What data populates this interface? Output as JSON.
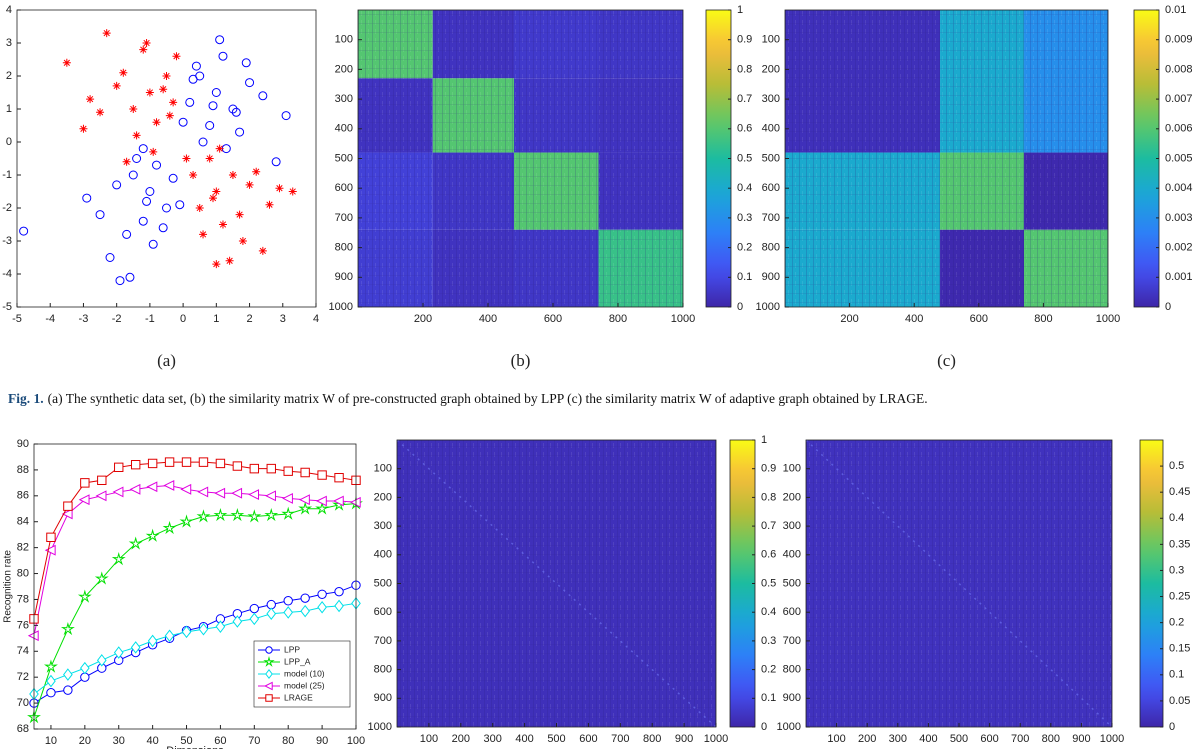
{
  "caption": {
    "label": "Fig. 1.",
    "text": "(a) The synthetic data set, (b) the similarity matrix W of pre-constructed graph obtained by LPP (c) the similarity matrix W of adaptive graph obtained by LRAGE."
  },
  "chart_data": [
    {
      "type": "scatter",
      "label": "(a)",
      "xlim": [
        -5,
        4
      ],
      "xticks": [
        -5,
        -4,
        -3,
        -2,
        -1,
        0,
        1,
        2,
        3,
        4
      ],
      "ylim": [
        -5,
        4
      ],
      "yticks": [
        -5,
        -4,
        -3,
        -2,
        -1,
        0,
        1,
        2,
        3,
        4
      ],
      "series": [
        {
          "color": "#0000ff",
          "marker": "circle",
          "x": [
            1.0,
            0.5,
            1.5,
            0.8,
            1.2,
            0.2,
            2.0,
            1.7,
            0.9,
            0.4,
            1.3,
            2.4,
            0.6,
            1.1,
            3.1,
            0.0,
            1.9,
            2.8,
            0.3,
            1.6,
            -1.0,
            -1.5,
            -0.5,
            -1.2,
            -0.8,
            -2.0,
            -1.7,
            -0.3,
            -1.1,
            -2.5,
            -0.9,
            -1.4,
            -0.6,
            -2.9,
            -4.8,
            -1.9,
            -1.2,
            -0.1,
            -2.2,
            -1.6
          ],
          "values": [
            1.5,
            2.0,
            1.0,
            0.5,
            2.6,
            1.2,
            1.8,
            0.3,
            1.1,
            2.3,
            -0.2,
            1.4,
            0.0,
            3.1,
            0.8,
            0.6,
            2.4,
            -0.6,
            1.9,
            0.9,
            -1.5,
            -1.0,
            -2.0,
            -2.4,
            -0.7,
            -1.3,
            -2.8,
            -1.1,
            -1.8,
            -2.2,
            -3.1,
            -0.5,
            -2.6,
            -1.7,
            -2.7,
            -4.2,
            -0.2,
            -1.9,
            -3.5,
            -4.1
          ]
        },
        {
          "color": "#ff0000",
          "marker": "asterisk",
          "x": [
            -1.0,
            -1.5,
            -0.5,
            -2.0,
            -0.8,
            -3.5,
            -1.2,
            -2.5,
            -0.3,
            -1.8,
            -0.9,
            -2.8,
            -0.2,
            -1.4,
            -2.3,
            -0.6,
            -1.7,
            -3.0,
            -1.1,
            -0.4,
            1.0,
            1.5,
            0.5,
            2.0,
            0.8,
            1.2,
            2.6,
            0.3,
            1.8,
            2.9,
            1.1,
            0.6,
            1.4,
            3.3,
            2.2,
            1.7,
            0.9,
            0.1,
            2.4,
            1.0
          ],
          "values": [
            1.5,
            1.0,
            2.0,
            1.7,
            0.6,
            2.4,
            2.8,
            0.9,
            1.2,
            2.1,
            -0.3,
            1.3,
            2.6,
            0.2,
            3.3,
            1.6,
            -0.6,
            0.4,
            3.0,
            0.8,
            -1.5,
            -1.0,
            -2.0,
            -1.3,
            -0.5,
            -2.5,
            -1.9,
            -1.0,
            -3.0,
            -1.4,
            -0.2,
            -2.8,
            -3.6,
            -1.5,
            -0.9,
            -2.2,
            -1.7,
            -0.5,
            -3.3,
            -3.7
          ]
        }
      ]
    },
    {
      "type": "heatmap",
      "label": "(b)",
      "colormap": "parula",
      "y_direction": "reverse",
      "xlim": [
        0,
        1000
      ],
      "xticks": [
        200,
        400,
        600,
        800,
        1000
      ],
      "ylim": [
        0,
        1000
      ],
      "yticks": [
        100,
        200,
        300,
        400,
        500,
        600,
        700,
        800,
        900,
        1000
      ],
      "block_edges": [
        0,
        230,
        480,
        740,
        1000
      ],
      "block_values": [
        [
          0.6,
          0.04,
          0.06,
          0.05
        ],
        [
          0.04,
          0.6,
          0.05,
          0.04
        ],
        [
          0.08,
          0.05,
          0.6,
          0.04
        ],
        [
          0.07,
          0.04,
          0.05,
          0.55
        ]
      ],
      "clim": [
        0,
        1
      ],
      "cticks": [
        0,
        0.1,
        0.2,
        0.3,
        0.4,
        0.5,
        0.6,
        0.7,
        0.8,
        0.9,
        1
      ]
    },
    {
      "type": "heatmap",
      "label": "(c)",
      "colormap": "parula",
      "y_direction": "reverse",
      "xlim": [
        0,
        1000
      ],
      "xticks": [
        200,
        400,
        600,
        800,
        1000
      ],
      "ylim": [
        0,
        1000
      ],
      "yticks": [
        100,
        200,
        300,
        400,
        500,
        600,
        700,
        800,
        900,
        1000
      ],
      "block_edges": [
        0,
        480,
        740,
        1000
      ],
      "block_values": [
        [
          0.0003,
          0.004,
          0.003
        ],
        [
          0.004,
          0.006,
          0.0001
        ],
        [
          0.004,
          0.0001,
          0.006
        ]
      ],
      "clim": [
        0,
        0.01
      ],
      "cticks": [
        0,
        0.001,
        0.002,
        0.003,
        0.004,
        0.005,
        0.006,
        0.007,
        0.008,
        0.009,
        0.01
      ]
    },
    {
      "type": "line",
      "ylabel": "Recognition  rate",
      "xlabel": "Dimensions",
      "legend": "lower right",
      "x": [
        5,
        10,
        15,
        20,
        25,
        30,
        35,
        40,
        45,
        50,
        55,
        60,
        65,
        70,
        75,
        80,
        85,
        90,
        95,
        100
      ],
      "xlim": [
        5,
        100
      ],
      "xticks": [
        10,
        20,
        30,
        40,
        50,
        60,
        70,
        80,
        90,
        100
      ],
      "ylim": [
        68,
        90
      ],
      "yticks": [
        68,
        70,
        72,
        74,
        76,
        78,
        80,
        82,
        84,
        86,
        88,
        90
      ],
      "series": [
        {
          "name": "LPP",
          "color": "#0000ff",
          "marker": "circle",
          "values": [
            70,
            70.8,
            71,
            72,
            72.7,
            73.3,
            73.9,
            74.5,
            75,
            75.6,
            75.9,
            76.5,
            76.9,
            77.3,
            77.6,
            77.9,
            78.1,
            78.4,
            78.6,
            79.1
          ]
        },
        {
          "name": "LPP_A",
          "color": "#00e000",
          "marker": "star",
          "values": [
            68.9,
            72.8,
            75.7,
            78.2,
            79.6,
            81.1,
            82.3,
            82.9,
            83.5,
            84,
            84.4,
            84.5,
            84.5,
            84.4,
            84.5,
            84.6,
            85,
            85,
            85.3,
            85.4
          ]
        },
        {
          "name": "model (10)",
          "color": "#00e0e8",
          "marker": "diamond",
          "values": [
            70.7,
            71.7,
            72.2,
            72.7,
            73.3,
            73.9,
            74.3,
            74.8,
            75.2,
            75.5,
            75.7,
            75.9,
            76.3,
            76.5,
            76.9,
            77,
            77.1,
            77.4,
            77.5,
            77.7
          ]
        },
        {
          "name": "model (25)",
          "color": "#e000e0",
          "marker": "triangle-left",
          "values": [
            75.2,
            81.8,
            84.6,
            85.7,
            86,
            86.3,
            86.5,
            86.7,
            86.8,
            86.5,
            86.3,
            86.2,
            86.2,
            86.1,
            86,
            85.8,
            85.7,
            85.6,
            85.6,
            85.5
          ]
        },
        {
          "name": "LRAGE",
          "color": "#e00000",
          "marker": "square",
          "values": [
            76.5,
            82.8,
            85.2,
            87,
            87.2,
            88.2,
            88.4,
            88.5,
            88.6,
            88.6,
            88.6,
            88.5,
            88.3,
            88.1,
            88.1,
            87.9,
            87.8,
            87.6,
            87.4,
            87.2
          ]
        }
      ]
    },
    {
      "type": "heatmap",
      "colormap": "parula",
      "y_direction": "reverse",
      "xlim": [
        0,
        1000
      ],
      "xticks": [
        100,
        200,
        300,
        400,
        500,
        600,
        700,
        800,
        900,
        1000
      ],
      "ylim": [
        0,
        1000
      ],
      "yticks": [
        100,
        200,
        300,
        400,
        500,
        600,
        700,
        800,
        900,
        1000
      ],
      "block_edges": [
        0,
        1000
      ],
      "block_values": [
        [
          0.03
        ]
      ],
      "clim": [
        0,
        1
      ],
      "cticks": [
        0,
        0.1,
        0.2,
        0.3,
        0.4,
        0.5,
        0.6,
        0.7,
        0.8,
        0.9,
        1
      ]
    },
    {
      "type": "heatmap",
      "colormap": "parula",
      "y_direction": "reverse",
      "xlim": [
        0,
        1000
      ],
      "xticks": [
        100,
        200,
        300,
        400,
        500,
        600,
        700,
        800,
        900,
        1000
      ],
      "ylim": [
        0,
        1000
      ],
      "yticks": [
        100,
        200,
        300,
        400,
        500,
        600,
        700,
        800,
        900,
        1000
      ],
      "block_edges": [
        0,
        1000
      ],
      "block_values": [
        [
          0.02
        ]
      ],
      "clim": [
        0,
        0.55
      ],
      "cticks": [
        0,
        0.05,
        0.1,
        0.15,
        0.2,
        0.25,
        0.3,
        0.35,
        0.4,
        0.45,
        0.5
      ]
    }
  ]
}
